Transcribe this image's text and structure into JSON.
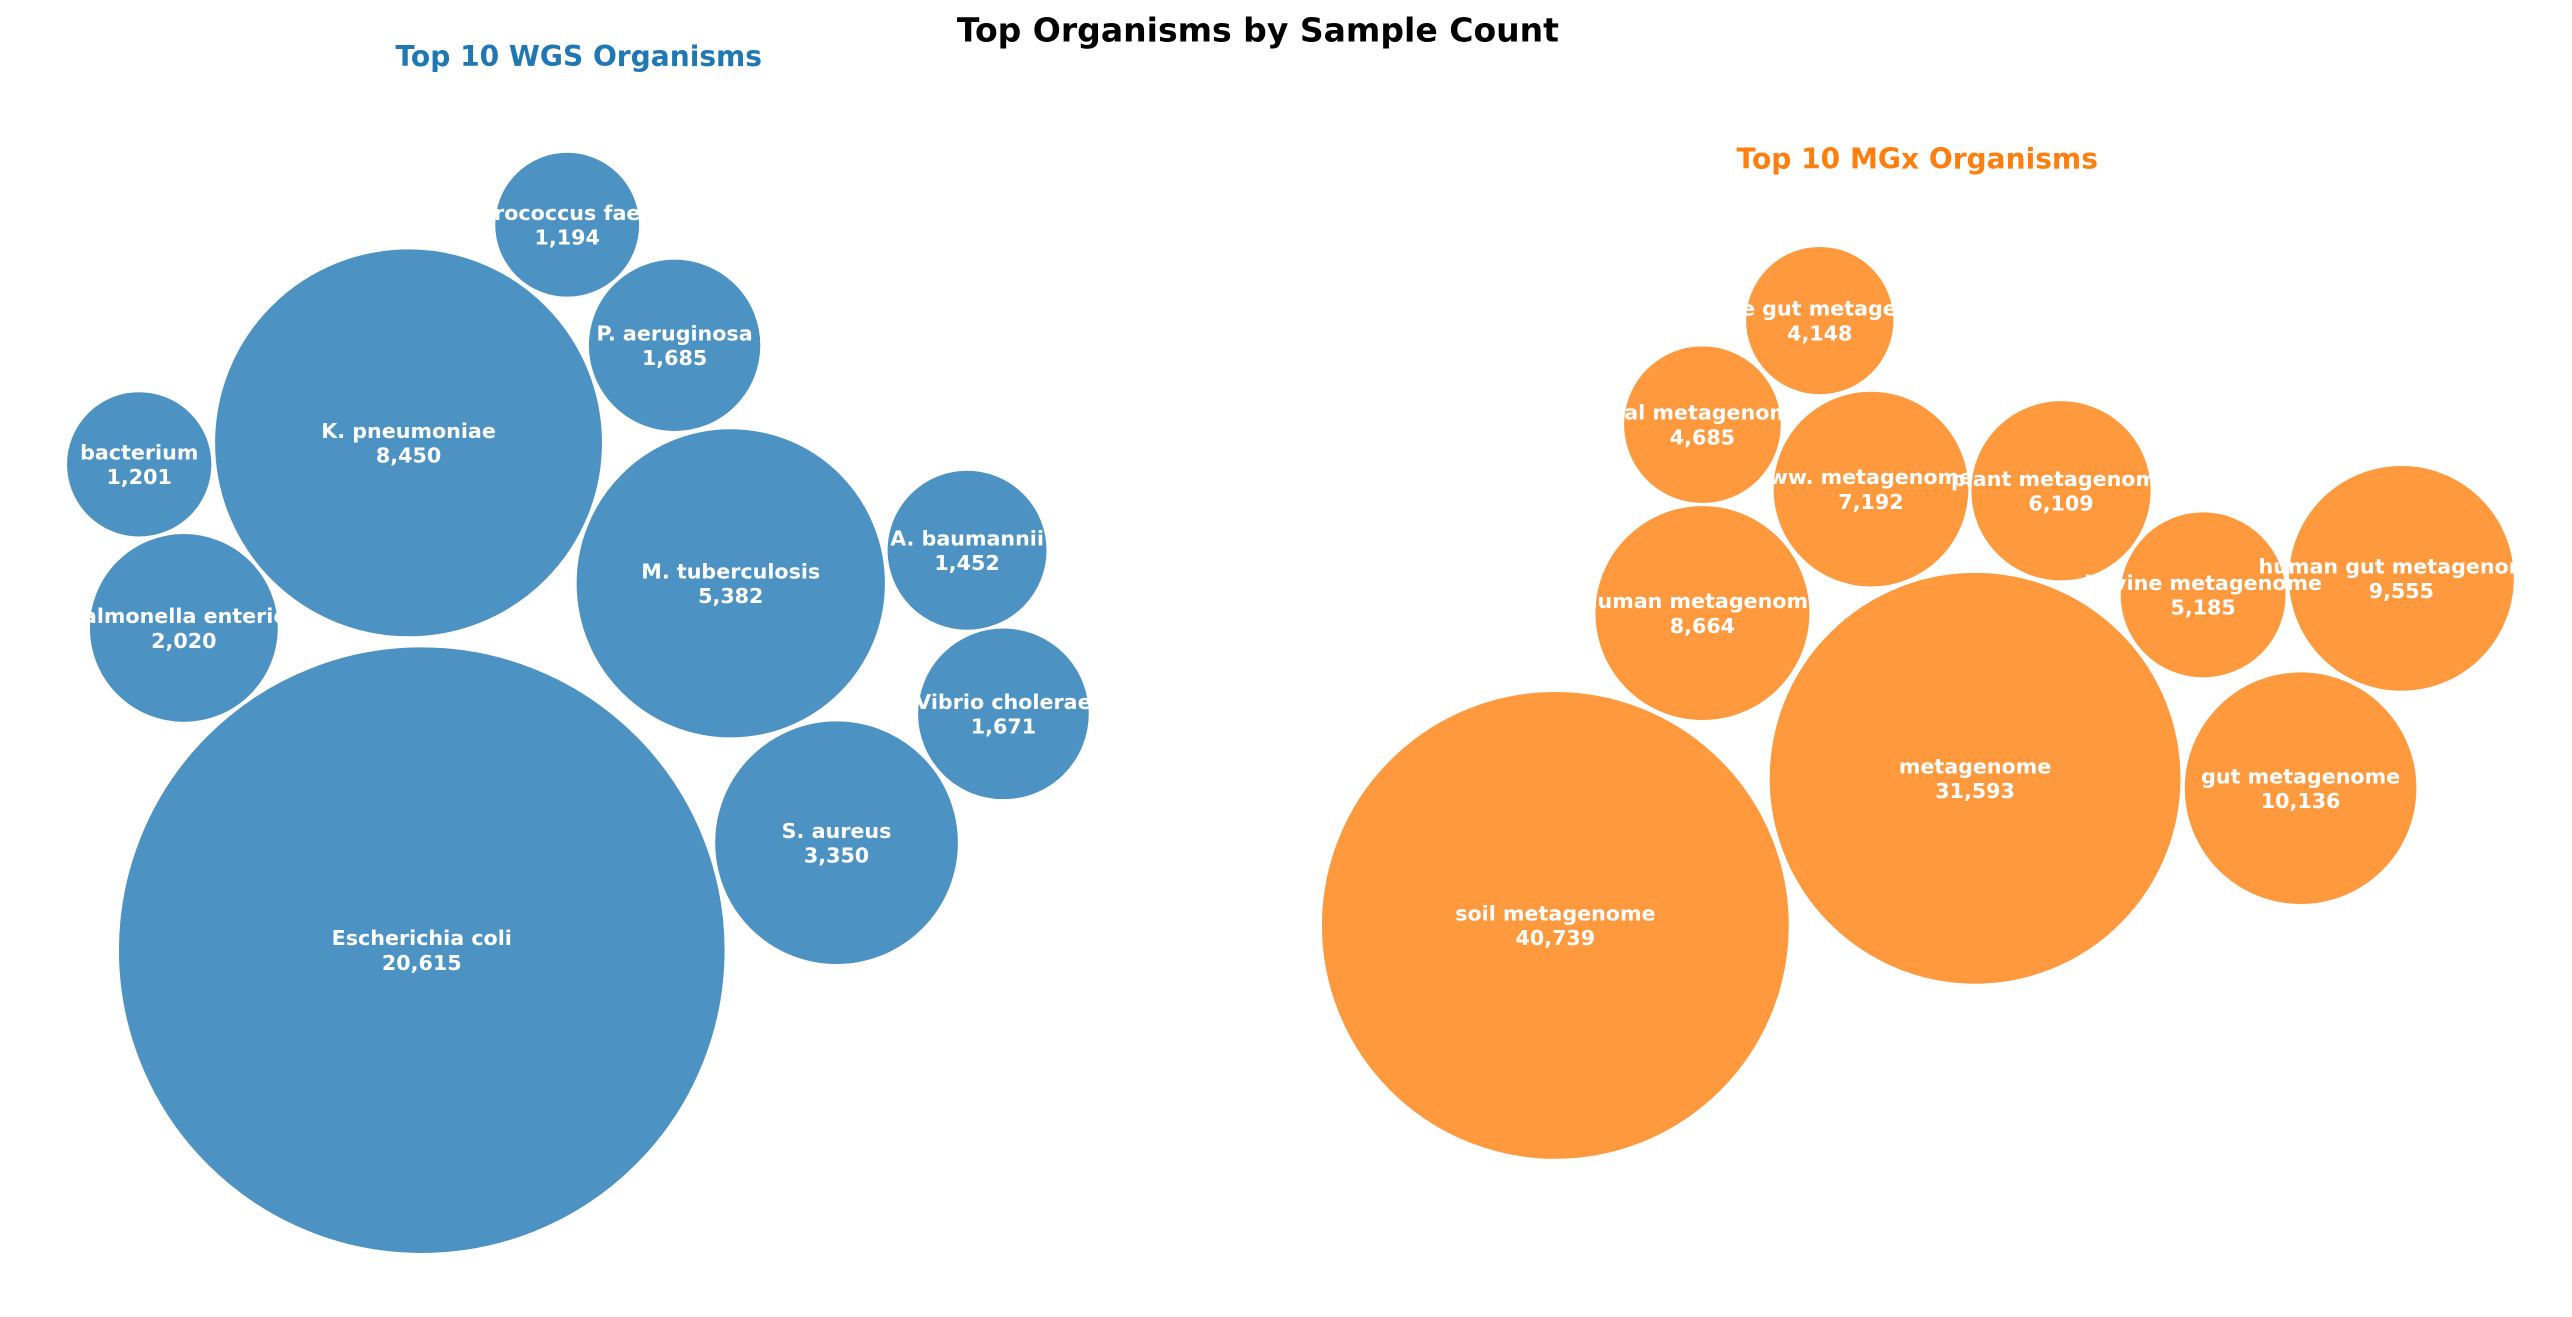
{
  "title": "Top Organisms by Sample Count",
  "chart_data": [
    {
      "type": "bubble",
      "title": "Top 10 WGS Organisms",
      "title_color": "#1f77b4",
      "fill_color": "#4c92c3",
      "categories": [
        "Escherichia coli",
        "K. pneumoniae",
        "M. tuberculosis",
        "S. aureus",
        "Salmonella enterica",
        "P. aeruginosa",
        "Vibrio cholerae",
        "A. baumannii",
        "bacterium",
        "Enterococcus faecalis"
      ],
      "values": [
        20615,
        8450,
        5382,
        3350,
        2020,
        1685,
        1671,
        1452,
        1201,
        1194
      ],
      "value_labels": [
        "20,615",
        "8,450",
        "5,382",
        "3,350",
        "2,020",
        "1,685",
        "1,671",
        "1,452",
        "1,201",
        "1,194"
      ]
    },
    {
      "type": "bubble",
      "title": "Top 10 MGx Organisms",
      "title_color": "#ff7f0e",
      "fill_color": "#ff993e",
      "categories": [
        "soil metagenome",
        "metagenome",
        "gut metagenome",
        "human gut metagenome",
        "human metagenome",
        "ww. metagenome",
        "plant metagenome",
        "bovine metagenome",
        "oral metagenome",
        "mouse gut metagenome"
      ],
      "values": [
        40739,
        31593,
        10136,
        9555,
        8664,
        7192,
        6109,
        5185,
        4685,
        4148
      ],
      "value_labels": [
        "40,739",
        "31,593",
        "10,136",
        "9,555",
        "8,664",
        "7,192",
        "6,109",
        "5,185",
        "4,685",
        "4,148"
      ]
    }
  ]
}
